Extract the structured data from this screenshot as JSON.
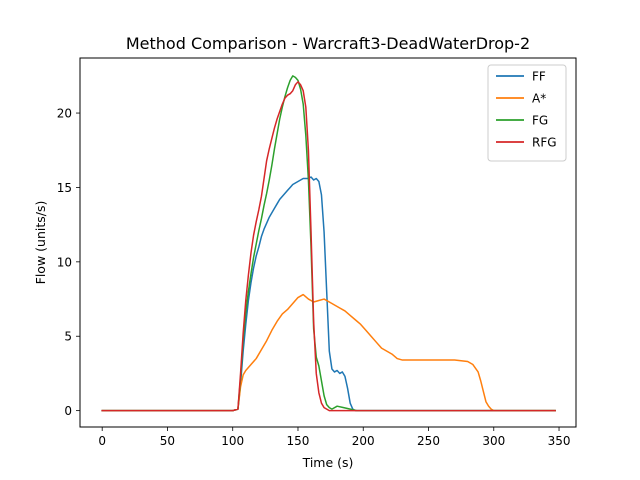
{
  "chart_data": {
    "type": "line",
    "title": "Method Comparison - Warcraft3-DeadWaterDrop-2",
    "xlabel": "Time (s)",
    "ylabel": "Flow (units/s)",
    "xlim": [
      -17,
      363
    ],
    "ylim": [
      -1.1,
      23.7
    ],
    "xticks": [
      0,
      50,
      100,
      150,
      200,
      250,
      300,
      350
    ],
    "yticks": [
      0,
      5,
      10,
      15,
      20
    ],
    "legend_position": "top-right",
    "grid": false,
    "series": [
      {
        "name": "FF",
        "color": "#1f77b4",
        "x": [
          0,
          100,
          104,
          106,
          108,
          110,
          112,
          114,
          116,
          118,
          120,
          122,
          124,
          126,
          128,
          130,
          132,
          134,
          136,
          138,
          140,
          142,
          144,
          146,
          148,
          150,
          152,
          154,
          156,
          158,
          160,
          162,
          164,
          166,
          168,
          170,
          172,
          174,
          176,
          178,
          180,
          182,
          184,
          186,
          188,
          190,
          192,
          194,
          196,
          200,
          250,
          300,
          347
        ],
        "y": [
          0,
          0,
          0.1,
          1.8,
          4.0,
          5.8,
          7.4,
          8.6,
          9.6,
          10.4,
          11.0,
          11.7,
          12.2,
          12.6,
          13.0,
          13.3,
          13.6,
          13.9,
          14.2,
          14.4,
          14.6,
          14.8,
          15.0,
          15.2,
          15.3,
          15.4,
          15.5,
          15.6,
          15.6,
          15.6,
          15.7,
          15.5,
          15.6,
          15.4,
          14.5,
          12.0,
          8.0,
          4.0,
          2.8,
          2.6,
          2.7,
          2.5,
          2.6,
          2.3,
          1.5,
          0.5,
          0.1,
          0,
          0,
          0,
          0,
          0,
          0
        ]
      },
      {
        "name": "A*",
        "color": "#ff7f0e",
        "x": [
          0,
          100,
          104,
          106,
          108,
          110,
          114,
          118,
          122,
          126,
          130,
          134,
          138,
          142,
          146,
          150,
          154,
          158,
          162,
          166,
          170,
          174,
          178,
          182,
          186,
          190,
          194,
          198,
          202,
          206,
          210,
          214,
          218,
          222,
          226,
          230,
          240,
          250,
          260,
          270,
          280,
          284,
          288,
          290,
          292,
          294,
          296,
          298,
          300,
          305,
          320,
          347
        ],
        "y": [
          0,
          0,
          0.1,
          1.6,
          2.4,
          2.7,
          3.1,
          3.5,
          4.1,
          4.7,
          5.4,
          6.0,
          6.5,
          6.8,
          7.2,
          7.6,
          7.8,
          7.5,
          7.3,
          7.4,
          7.5,
          7.3,
          7.1,
          6.9,
          6.7,
          6.4,
          6.1,
          5.8,
          5.4,
          5.0,
          4.6,
          4.2,
          4.0,
          3.8,
          3.5,
          3.4,
          3.4,
          3.4,
          3.4,
          3.4,
          3.3,
          3.1,
          2.6,
          2.0,
          1.3,
          0.6,
          0.3,
          0.1,
          0,
          0,
          0,
          0
        ]
      },
      {
        "name": "FG",
        "color": "#2ca02c",
        "x": [
          0,
          100,
          104,
          106,
          108,
          110,
          112,
          114,
          116,
          118,
          120,
          122,
          124,
          126,
          128,
          130,
          132,
          134,
          136,
          138,
          140,
          142,
          144,
          146,
          148,
          150,
          152,
          154,
          156,
          158,
          160,
          162,
          164,
          166,
          168,
          170,
          172,
          174,
          176,
          180,
          185,
          190,
          195,
          200,
          250,
          300,
          347
        ],
        "y": [
          0,
          0,
          0.1,
          2.2,
          4.8,
          6.6,
          8.0,
          9.2,
          10.3,
          11.2,
          12.1,
          12.9,
          13.8,
          14.6,
          15.5,
          16.5,
          17.6,
          18.6,
          19.6,
          20.4,
          21.1,
          21.7,
          22.2,
          22.5,
          22.4,
          22.2,
          21.6,
          20.6,
          18.5,
          15.5,
          11.0,
          5.5,
          3.6,
          3.0,
          2.0,
          1.0,
          0.4,
          0.2,
          0.1,
          0.3,
          0.2,
          0.1,
          0,
          0,
          0,
          0,
          0
        ]
      },
      {
        "name": "RFG",
        "color": "#d62728",
        "x": [
          0,
          100,
          104,
          106,
          108,
          110,
          112,
          114,
          116,
          118,
          120,
          122,
          124,
          126,
          128,
          130,
          132,
          134,
          136,
          138,
          140,
          142,
          144,
          146,
          148,
          150,
          152,
          154,
          156,
          158,
          160,
          162,
          164,
          166,
          168,
          170,
          172,
          174,
          180,
          190,
          200,
          250,
          300,
          347
        ],
        "y": [
          0,
          0,
          0.1,
          2.5,
          5.2,
          7.4,
          9.1,
          10.6,
          11.8,
          12.7,
          13.5,
          14.4,
          15.6,
          16.8,
          17.6,
          18.3,
          19.0,
          19.6,
          20.1,
          20.6,
          21.0,
          21.2,
          21.3,
          21.5,
          21.9,
          22.1,
          21.9,
          21.5,
          20.4,
          17.5,
          12.0,
          6.0,
          2.5,
          1.2,
          0.5,
          0.2,
          0.1,
          0,
          0,
          0,
          0,
          0,
          0,
          0
        ]
      }
    ]
  }
}
